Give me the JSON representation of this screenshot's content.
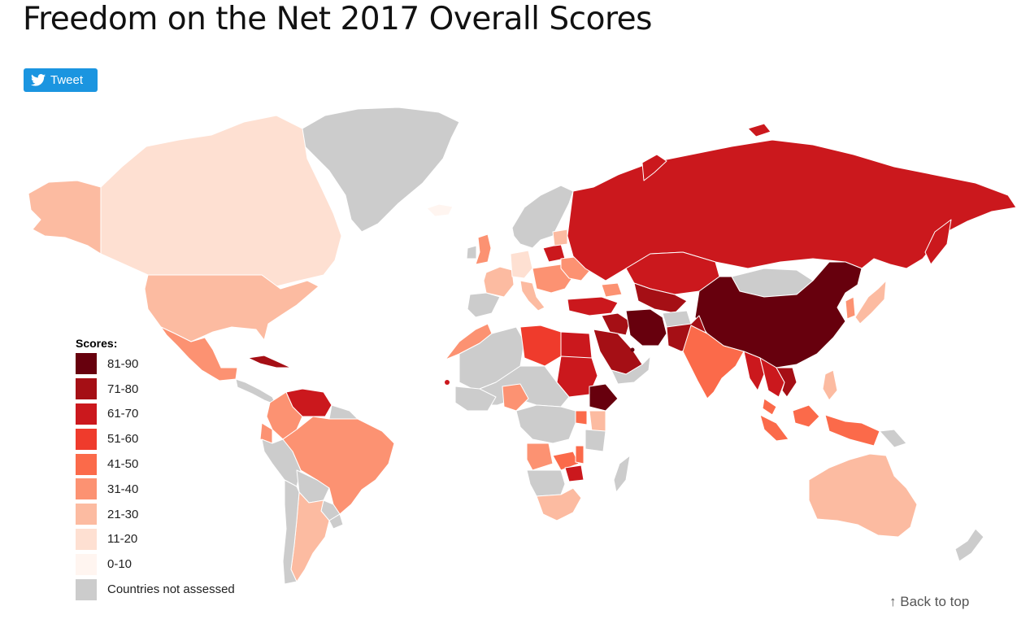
{
  "page": {
    "title": "Freedom on the Net 2017 Overall Scores"
  },
  "tweet_button": {
    "label": "Tweet",
    "icon": "twitter-bird-icon",
    "color": "#1b95e0"
  },
  "legend": {
    "title": "Scores:",
    "items": [
      {
        "label": "81-90",
        "color": "#67000d"
      },
      {
        "label": "71-80",
        "color": "#a50f15"
      },
      {
        "label": "61-70",
        "color": "#cb181d"
      },
      {
        "label": "51-60",
        "color": "#ef3b2c"
      },
      {
        "label": "41-50",
        "color": "#fb6a4a"
      },
      {
        "label": "31-40",
        "color": "#fc9272"
      },
      {
        "label": "21-30",
        "color": "#fcbba1"
      },
      {
        "label": "11-20",
        "color": "#fee0d2"
      },
      {
        "label": "0-10",
        "color": "#fff5f0"
      },
      {
        "label": "Countries not assessed",
        "color": "#cccccc"
      }
    ]
  },
  "back_to_top": {
    "arrow": "↑",
    "label": "Back to top"
  }
}
